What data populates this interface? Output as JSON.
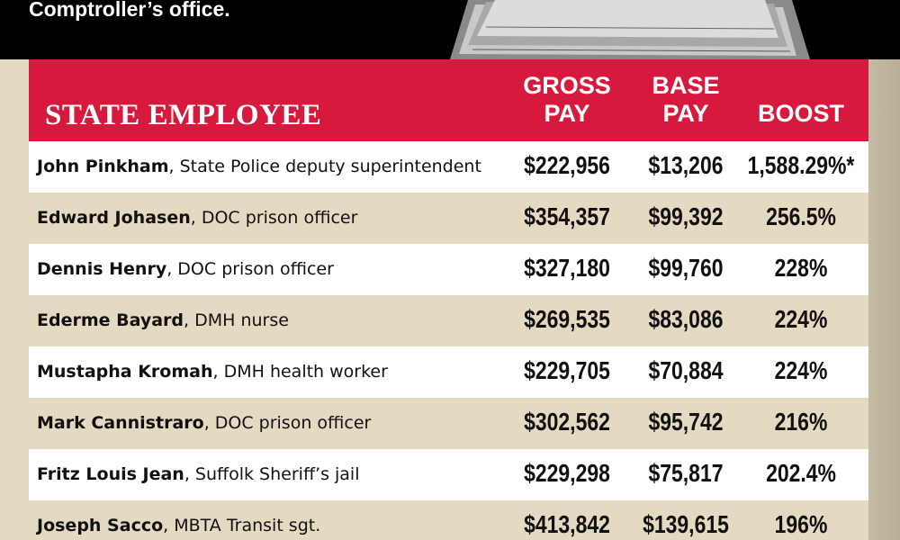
{
  "header": {
    "title": "Comptroller’s office."
  },
  "table": {
    "columns": [
      "STATE EMPLOYEE",
      "GROSS PAY",
      "BASE PAY",
      "BOOST"
    ],
    "rows": [
      {
        "name": "John Pinkham",
        "role": ", State Police deputy superintendent",
        "gross": "$222,956",
        "base": "$13,206",
        "boost": "1,588.29%*"
      },
      {
        "name": "Edward Johasen",
        "role": ", DOC prison officer",
        "gross": "$354,357",
        "base": "$99,392",
        "boost": "256.5%"
      },
      {
        "name": "Dennis Henry",
        "role": ", DOC prison officer",
        "gross": "$327,180",
        "base": "$99,760",
        "boost": "228%"
      },
      {
        "name": "Ederme Bayard",
        "role": ", DMH nurse",
        "gross": "$269,535",
        "base": "$83,086",
        "boost": "224%"
      },
      {
        "name": "Mustapha Kromah",
        "role": ", DMH health worker",
        "gross": "$229,705",
        "base": "$70,884",
        "boost": "224%"
      },
      {
        "name": "Mark Cannistraro",
        "role": ", DOC prison officer",
        "gross": "$302,562",
        "base": "$95,742",
        "boost": "216%"
      },
      {
        "name": "Fritz Louis Jean",
        "role": ", Suffolk Sheriff’s jail",
        "gross": "$229,298",
        "base": "$75,817",
        "boost": "202.4%"
      },
      {
        "name": "Joseph Sacco",
        "role": ", MBTA Transit sgt.",
        "gross": "$413,842",
        "base": "$139,615",
        "boost": "196%"
      }
    ]
  }
}
